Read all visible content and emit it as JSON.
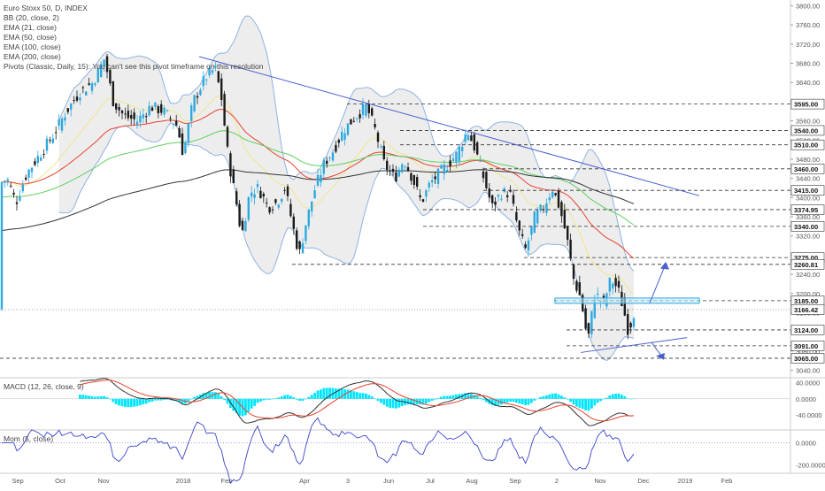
{
  "header": {
    "title": "Euro Stoxx 50, D, INDEX",
    "indicators": [
      "BB (20, close, 2)",
      "EMA (21, close)",
      "EMA (50, close)",
      "EMA (100, close)",
      "EMA (200, close)"
    ],
    "pivots_note": "Pivots (Classic, Daily, 15): You can't see this pivot timeframe on this resolution"
  },
  "panes": {
    "macd_title": "MACD (12, 26, close, 9)",
    "mom_title": "Mom (5, close)"
  },
  "colors": {
    "candle_up": "#2fa8e0",
    "candle_down": "#1a1a1a",
    "bb": "#8fb3e0",
    "bb_fill": "#e6e6e6",
    "ema21": "#f0e68c",
    "ema50": "#e8432e",
    "ema100": "#5fcf5f",
    "ema200": "#333333",
    "trendline": "#4a5fd0",
    "channel": "#2aa8e0",
    "macd_hist": "#00e5ff",
    "macd_line": "#333333",
    "signal_line": "#e8432e",
    "mom_line": "#3a44c8",
    "level": "#333333"
  },
  "chart_data": {
    "type": "candlestick",
    "y_axis_ticks": [
      "3800.00",
      "3760.00",
      "3720.00",
      "3680.00",
      "3640.00",
      "3600.00",
      "3560.00",
      "3520.00",
      "3480.00",
      "3440.00",
      "3400.00",
      "3360.00",
      "3320.00",
      "3280.00",
      "3240.00",
      "3200.00",
      "3160.00",
      "3120.00",
      "3080.00",
      "3040.00"
    ],
    "ylim": [
      3028,
      3812
    ],
    "x_axis_ticks": [
      "Sep",
      "Oct",
      "Nov",
      "2018",
      "Feb",
      "Apr",
      "3",
      "Jun",
      "Jul",
      "Aug",
      "Sep",
      "2",
      "Nov",
      "Dec",
      "2019",
      "Feb"
    ],
    "price_levels": [
      {
        "value": 3595.0,
        "label": "3595.00"
      },
      {
        "value": 3540.0,
        "label": "3540.00"
      },
      {
        "value": 3510.0,
        "label": "3510.00"
      },
      {
        "value": 3460.0,
        "label": "3460.00"
      },
      {
        "value": 3415.0,
        "label": "3415.00"
      },
      {
        "value": 3374.95,
        "label": "3374.95"
      },
      {
        "value": 3340.0,
        "label": "3340.00"
      },
      {
        "value": 3275.0,
        "label": "3275.00"
      },
      {
        "value": 3260.81,
        "label": "3260.81"
      },
      {
        "value": 3185.0,
        "label": "3185.00"
      },
      {
        "value": 3124.0,
        "label": "3124.00"
      },
      {
        "value": 3091.0,
        "label": "3091.00"
      },
      {
        "value": 3065.0,
        "label": "3065.00"
      }
    ],
    "last_price": {
      "value": 3166.42,
      "label": "3166.42"
    },
    "macd": {
      "ticks": [
        "40.0000",
        "0.0000",
        "-40.0000"
      ],
      "ylim": [
        -75,
        50
      ]
    },
    "momentum": {
      "ticks": [
        "0.0000",
        "-200.0000"
      ],
      "ylim": [
        -270,
        110
      ]
    }
  }
}
